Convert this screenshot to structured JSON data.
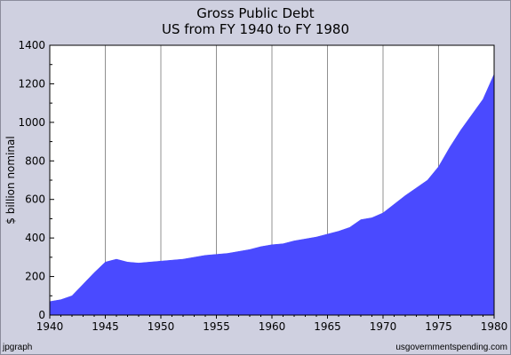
{
  "footer": {
    "left": "jpgraph",
    "right": "usgovernmentspending.com"
  },
  "chart_data": {
    "type": "area",
    "title": "Gross Public Debt",
    "subtitle": "US from FY 1940 to FY 1980",
    "xlabel": "",
    "ylabel": "$ billion nominal",
    "xlim": [
      1940,
      1980
    ],
    "ylim": [
      0,
      1400
    ],
    "xticks": [
      1940,
      1945,
      1950,
      1955,
      1960,
      1965,
      1970,
      1975,
      1980
    ],
    "yticks": [
      0,
      200,
      400,
      600,
      800,
      1000,
      1200,
      1400
    ],
    "grid": true,
    "legend": "none",
    "colors": {
      "area_fill": "#4a4aff",
      "plot_background": "#ffffff",
      "page_background": "#cfd0e0",
      "grid": "#909090"
    },
    "series": [
      {
        "x": [
          1940,
          1941,
          1942,
          1943,
          1944,
          1945,
          1946,
          1947,
          1948,
          1949,
          1950,
          1951,
          1952,
          1953,
          1954,
          1955,
          1956,
          1957,
          1958,
          1959,
          1960,
          1961,
          1962,
          1963,
          1964,
          1965,
          1966,
          1967,
          1968,
          1969,
          1970,
          1971,
          1972,
          1973,
          1974,
          1975,
          1976,
          1977,
          1978,
          1979,
          1980
        ],
        "values": [
          70,
          80,
          100,
          160,
          220,
          275,
          290,
          275,
          270,
          275,
          280,
          285,
          290,
          300,
          310,
          315,
          320,
          330,
          340,
          355,
          365,
          370,
          385,
          395,
          405,
          420,
          435,
          455,
          495,
          505,
          530,
          575,
          620,
          660,
          700,
          770,
          870,
          960,
          1040,
          1120,
          1250
        ]
      }
    ]
  }
}
